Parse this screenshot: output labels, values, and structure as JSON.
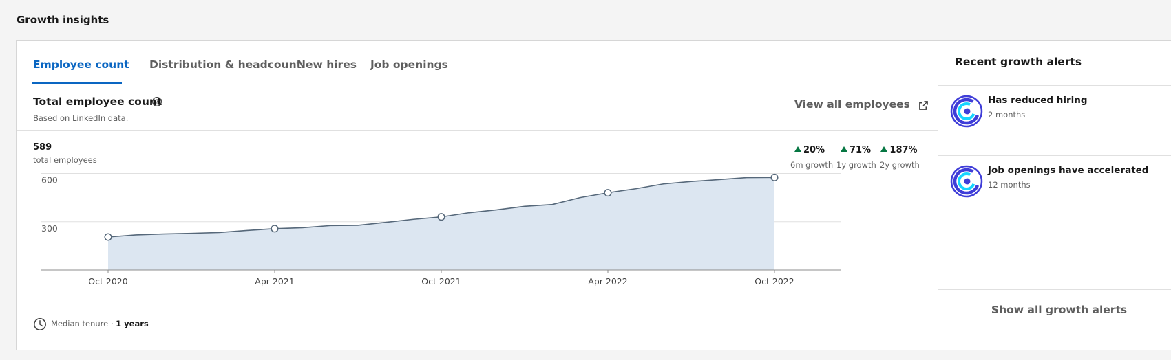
{
  "section_title": "Growth insights",
  "tabs": [
    {
      "label": "Employee count",
      "active": true
    },
    {
      "label": "Distribution & headcount",
      "active": false
    },
    {
      "label": "New hires",
      "active": false
    },
    {
      "label": "Job openings",
      "active": false
    }
  ],
  "chart_header": {
    "title": "Total employee count",
    "subtitle": "Based on LinkedIn data.",
    "view_all": "View all employees"
  },
  "summary": {
    "total": "589",
    "total_label": "total employees",
    "growth": [
      {
        "value": "20%",
        "label": "6m growth"
      },
      {
        "value": "71%",
        "label": "1y growth"
      },
      {
        "value": "187%",
        "label": "2y growth"
      }
    ]
  },
  "tenure": {
    "label": "Median tenure · ",
    "value": "1 years"
  },
  "chart_data": {
    "type": "area",
    "x_tick_labels": [
      "Oct 2020",
      "Apr 2021",
      "Oct 2021",
      "Apr 2022",
      "Oct 2022"
    ],
    "y_tick_labels": [
      "600",
      "300"
    ],
    "ylim": [
      0,
      600
    ],
    "grid": true,
    "series": [
      {
        "months": [
          "2020-10",
          "2020-11",
          "2020-12",
          "2021-01",
          "2021-02",
          "2021-03",
          "2021-04",
          "2021-05",
          "2021-06",
          "2021-07",
          "2021-08",
          "2021-09",
          "2021-10",
          "2021-11",
          "2021-12",
          "2022-01",
          "2022-02",
          "2022-03",
          "2022-04",
          "2022-05",
          "2022-06",
          "2022-07",
          "2022-08",
          "2022-09",
          "2022-10"
        ],
        "values": [
          205,
          218,
          224,
          228,
          233,
          246,
          257,
          263,
          276,
          278,
          296,
          315,
          330,
          356,
          374,
          396,
          407,
          450,
          480,
          505,
          535,
          550,
          562,
          574,
          575
        ],
        "markers": [
          "2020-10",
          "2021-04",
          "2021-10",
          "2022-04",
          "2022-10"
        ]
      }
    ],
    "colors": {
      "line": "#56687a",
      "fill": "#dce6f1",
      "grid": "#e0e0e0",
      "axis": "#8c8c8c"
    }
  },
  "alerts": {
    "title": "Recent growth alerts",
    "items": [
      {
        "title": "Has reduced hiring",
        "subtitle": "2 months"
      },
      {
        "title": "Job openings have accelerated",
        "subtitle": "12 months"
      }
    ],
    "show_all": "Show all growth alerts"
  },
  "colors": {
    "accent": "#0a66c2",
    "positive": "#057642",
    "logo_ring": "#3f3dd8",
    "logo_core": "#17d4ff"
  }
}
